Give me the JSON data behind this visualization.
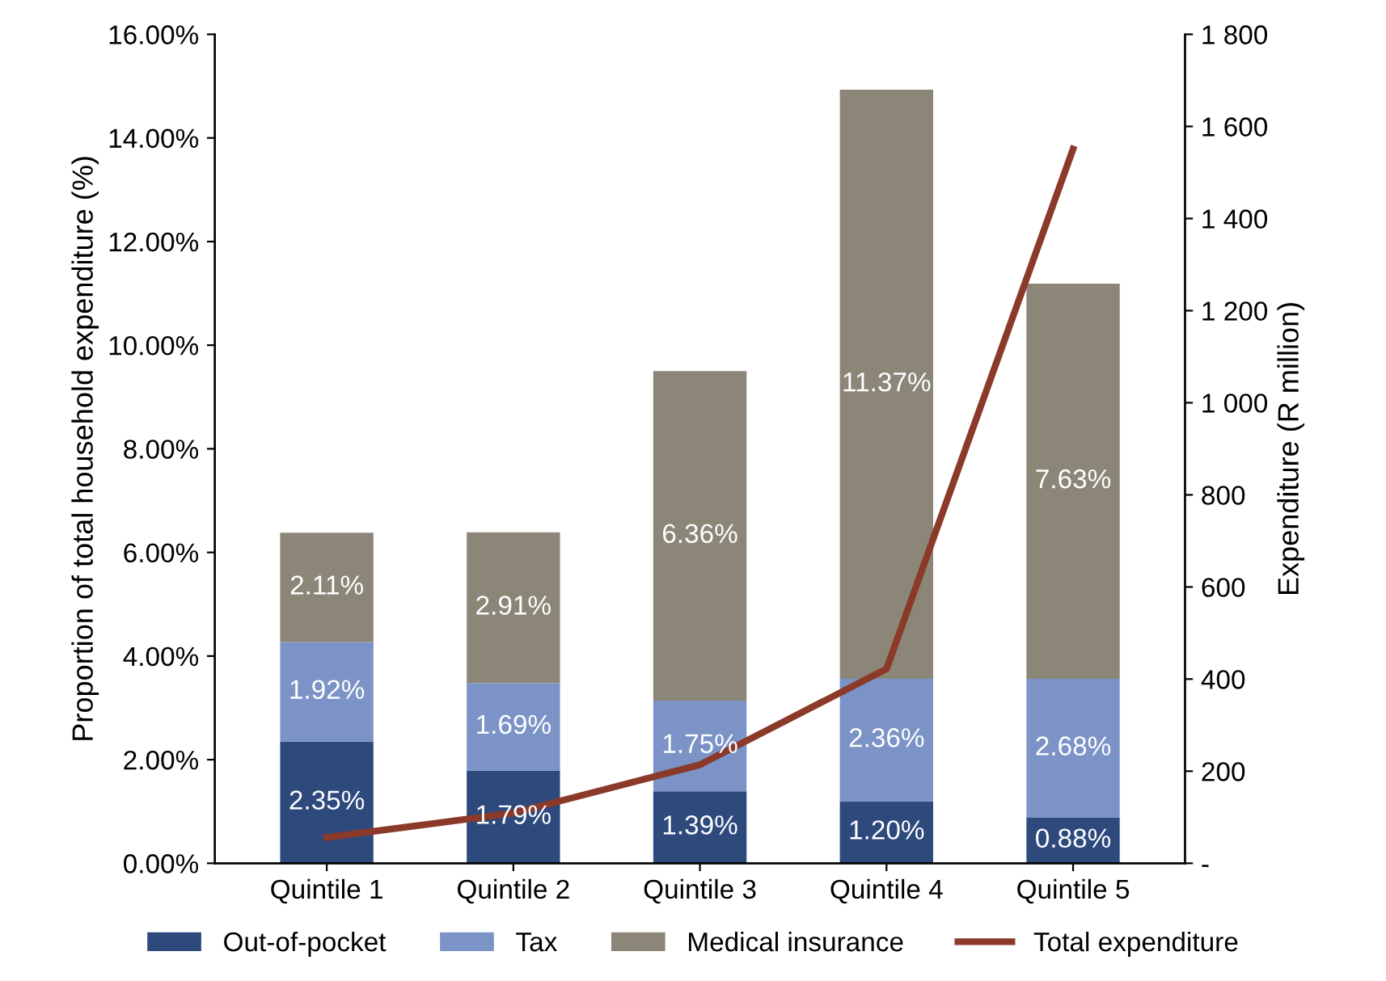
{
  "chart_data": {
    "type": "bar",
    "stacked": true,
    "categories": [
      "Quintile 1",
      "Quintile 2",
      "Quintile 3",
      "Quintile 4",
      "Quintile 5"
    ],
    "ylabel": "Proportion of total household expenditure (%)",
    "y2label": "Expenditure (R million)",
    "ylim": [
      0,
      16
    ],
    "yticks": [
      {
        "value": 0,
        "label": "0.00%"
      },
      {
        "value": 2,
        "label": "2.00%"
      },
      {
        "value": 4,
        "label": "4.00%"
      },
      {
        "value": 6,
        "label": "6.00%"
      },
      {
        "value": 8,
        "label": "8.00%"
      },
      {
        "value": 10,
        "label": "10.00%"
      },
      {
        "value": 12,
        "label": "12.00%"
      },
      {
        "value": 14,
        "label": "14.00%"
      },
      {
        "value": 16,
        "label": "16.00%"
      }
    ],
    "y2lim": [
      0,
      1800
    ],
    "y2ticks": [
      {
        "value": 0,
        "label": "-"
      },
      200,
      400,
      600,
      800,
      {
        "value": 1000,
        "label": "1 000"
      },
      {
        "value": 1200,
        "label": "1 200"
      },
      {
        "value": 1400,
        "label": "1 400"
      },
      {
        "value": 1600,
        "label": "1 600"
      },
      {
        "value": 1800,
        "label": "1 800"
      }
    ],
    "series": [
      {
        "name": "Out-of-pocket",
        "color": "#2e4a7d",
        "values": [
          2.35,
          1.79,
          1.39,
          1.2,
          0.88
        ],
        "value_labels": [
          "2.35%",
          "1.79%",
          "1.39%",
          "1.20%",
          "0.88%"
        ]
      },
      {
        "name": "Tax",
        "color": "#7b93c6",
        "values": [
          1.92,
          1.69,
          1.75,
          2.36,
          2.68
        ],
        "value_labels": [
          "1.92%",
          "1.69%",
          "1.75%",
          "2.36%",
          "2.68%"
        ]
      },
      {
        "name": "Medical insurance",
        "color": "#8c8678",
        "values": [
          2.11,
          2.91,
          6.36,
          11.37,
          7.63
        ],
        "value_labels": [
          "2.11%",
          "2.91%",
          "6.36%",
          "11.37%",
          "7.63%"
        ]
      },
      {
        "name": "Total expenditure",
        "type": "line",
        "axis": "y2",
        "color": "#8b3a2a",
        "values": [
          56,
          109,
          214,
          422,
          1551
        ]
      }
    ],
    "legend": "bottom",
    "grid": false,
    "marker": "none",
    "line_style": "solid"
  }
}
